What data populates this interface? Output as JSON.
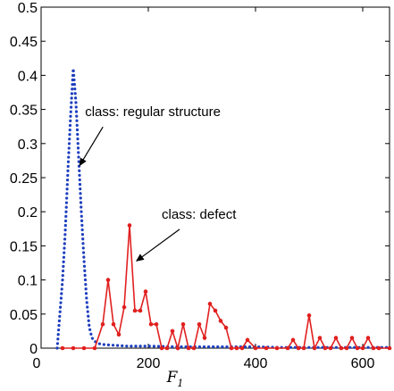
{
  "chart_data": {
    "type": "line",
    "xlabel": "F",
    "xlabel_subscript": "1",
    "xlim": [
      0,
      650
    ],
    "ylim": [
      0,
      0.5
    ],
    "xticks": [
      "0",
      "200",
      "400",
      "600"
    ],
    "xtick_values": [
      0,
      200,
      400,
      600
    ],
    "yticks": [
      "0",
      "0.05",
      "0.1",
      "0.15",
      "0.2",
      "0.25",
      "0.3",
      "0.35",
      "0.4",
      "0.45",
      "0.5"
    ],
    "ytick_values": [
      0,
      0.05,
      0.1,
      0.15,
      0.2,
      0.25,
      0.3,
      0.35,
      0.4,
      0.45,
      0.5
    ],
    "grid": false,
    "series": [
      {
        "color": "#1f3fbf",
        "style": "dotted",
        "x": [
          30,
          35,
          40,
          45,
          50,
          55,
          60,
          65,
          70,
          75,
          80,
          85,
          90,
          95,
          100,
          105,
          110,
          120,
          140,
          160,
          200,
          250,
          300,
          350,
          400,
          450,
          500,
          550,
          600,
          650
        ],
        "y": [
          0,
          0.05,
          0.1,
          0.17,
          0.26,
          0.34,
          0.41,
          0.36,
          0.28,
          0.2,
          0.13,
          0.07,
          0.03,
          0.015,
          0.01,
          0.008,
          0.006,
          0.005,
          0.004,
          0.003,
          0.003,
          0.002,
          0.002,
          0.002,
          0.002,
          0.001,
          0.001,
          0.001,
          0.001,
          0.001
        ]
      },
      {
        "color": "#e0201f",
        "style": "solid-markers",
        "x": [
          40,
          60,
          80,
          100,
          115,
          125,
          135,
          145,
          155,
          165,
          175,
          185,
          195,
          205,
          215,
          225,
          235,
          245,
          255,
          265,
          275,
          285,
          295,
          305,
          315,
          325,
          335,
          345,
          355,
          365,
          375,
          385,
          400,
          420,
          440,
          460,
          470,
          480,
          490,
          500,
          510,
          520,
          530,
          540,
          550,
          560,
          570,
          580,
          590,
          600,
          610,
          620,
          630,
          650
        ],
        "y": [
          0,
          0,
          0,
          0,
          0.035,
          0.1,
          0.035,
          0.02,
          0.06,
          0.18,
          0.055,
          0.055,
          0.083,
          0.035,
          0.035,
          0.0,
          0.0,
          0.025,
          0.0,
          0.035,
          0.0,
          0.0,
          0.035,
          0.015,
          0.065,
          0.055,
          0.04,
          0.03,
          0.0,
          0.0,
          0.0,
          0.012,
          0.0,
          0.0,
          0.0,
          0.0,
          0.012,
          0.0,
          0.0,
          0.048,
          0.0,
          0.015,
          0.0,
          0.0,
          0.015,
          0.0,
          0.0,
          0.015,
          0.0,
          0.0,
          0.015,
          0.0,
          0.0,
          0.0
        ]
      }
    ],
    "annotations": [
      {
        "text": "class: regular structure",
        "x": 82,
        "y": 0.34,
        "arrow_to_x": 62,
        "arrow_to_y": 0.26
      },
      {
        "text": "class: defect",
        "x": 225,
        "y": 0.19,
        "arrow_to_x": 168,
        "arrow_to_y": 0.12
      }
    ]
  }
}
